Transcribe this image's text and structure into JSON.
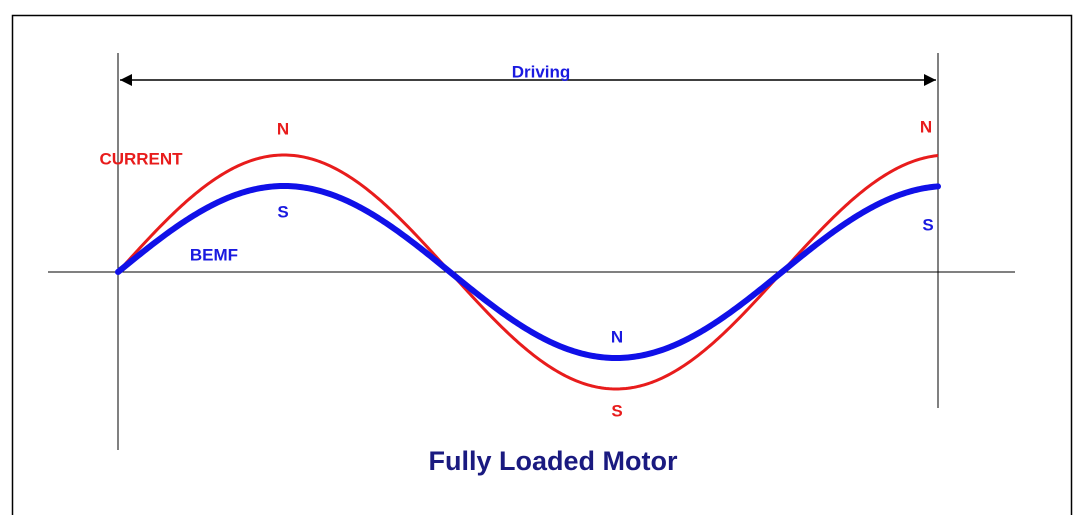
{
  "diagram": {
    "arrow_label": "Driving",
    "current_label": "CURRENT",
    "bemf_label": "BEMF",
    "pole_labels": {
      "current_peak_1": "N",
      "bemf_peak_1": "S",
      "bemf_trough": "N",
      "current_trough": "S",
      "current_peak_2": "N",
      "bemf_peak_2": "S"
    },
    "caption": "Fully Loaded Motor"
  }
}
